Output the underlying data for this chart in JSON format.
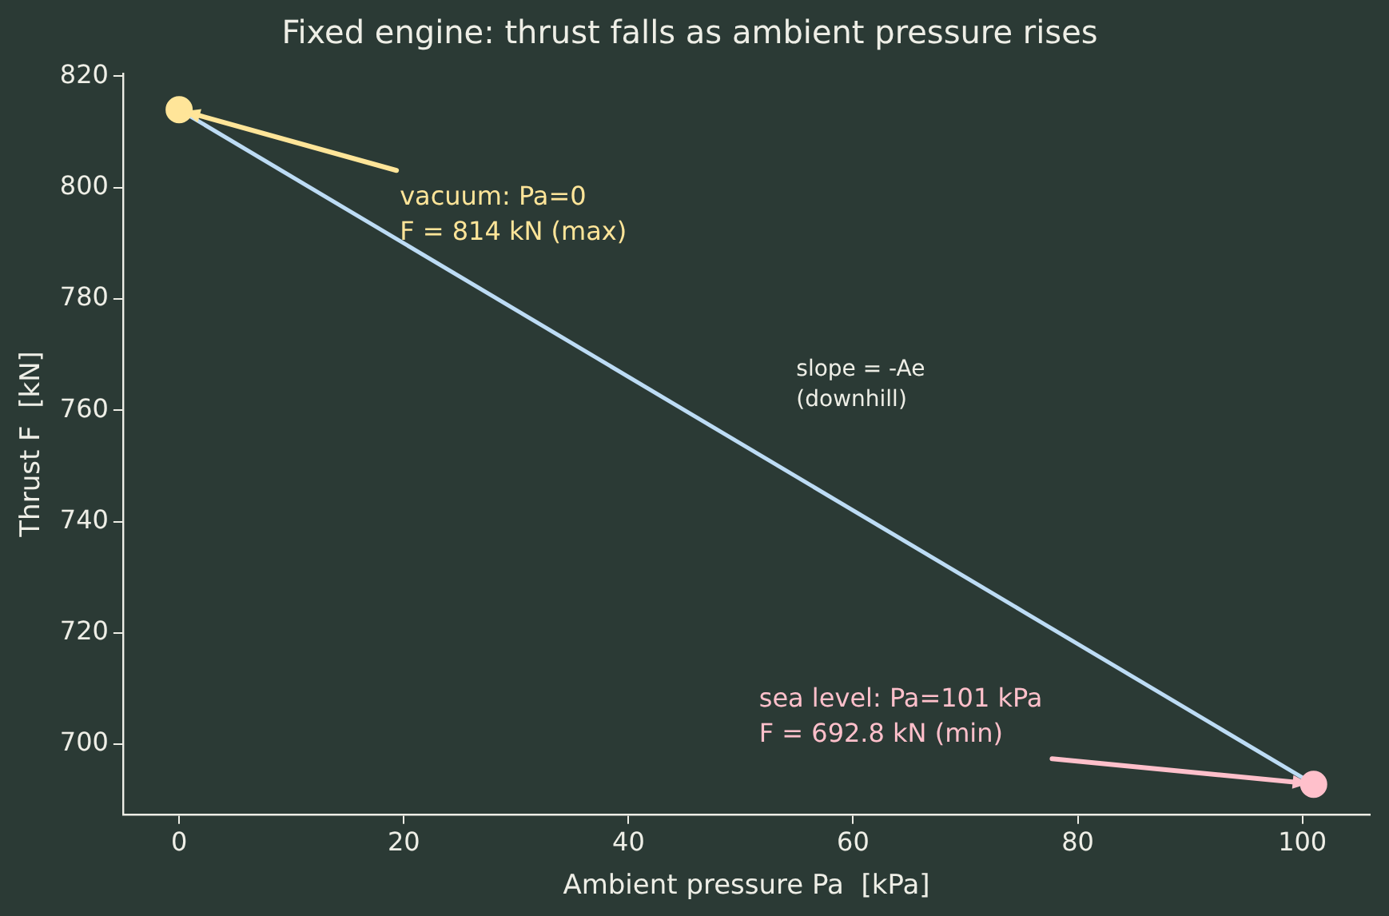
{
  "chart_data": {
    "type": "line",
    "title": "Fixed engine: thrust falls as ambient pressure rises",
    "xlabel": "Ambient pressure Pa  [kPa]",
    "ylabel": "Thrust F  [kN]",
    "series": [
      {
        "type": "line",
        "values": [
          814,
          692.8
        ],
        "color": "#bddcf5"
      },
      {
        "type": "scatter",
        "values": [
          814,
          692.8
        ],
        "colors": [
          "#ffe599",
          "#ffc0cb"
        ],
        "marker": "circle"
      }
    ],
    "x": [
      0,
      101
    ],
    "annotations": [
      {
        "text": "vacuum: Pa=0\nF = 814 kN (max)",
        "x": 0,
        "y": 814
      },
      {
        "text": "sea level: Pa=101 kPa\nF = 692.8 kN (min)",
        "x": 101,
        "y": 692.8
      },
      "slope = -Ae\n(downhill)"
    ],
    "xlim": [
      -5,
      106
    ],
    "xticks": [
      0,
      20,
      40,
      60,
      80,
      100
    ],
    "ylim": [
      687.4,
      820.5
    ],
    "yticks": [
      700,
      720,
      740,
      760,
      780,
      800,
      820
    ],
    "grid": false,
    "legend": false,
    "line_style": "solid"
  }
}
